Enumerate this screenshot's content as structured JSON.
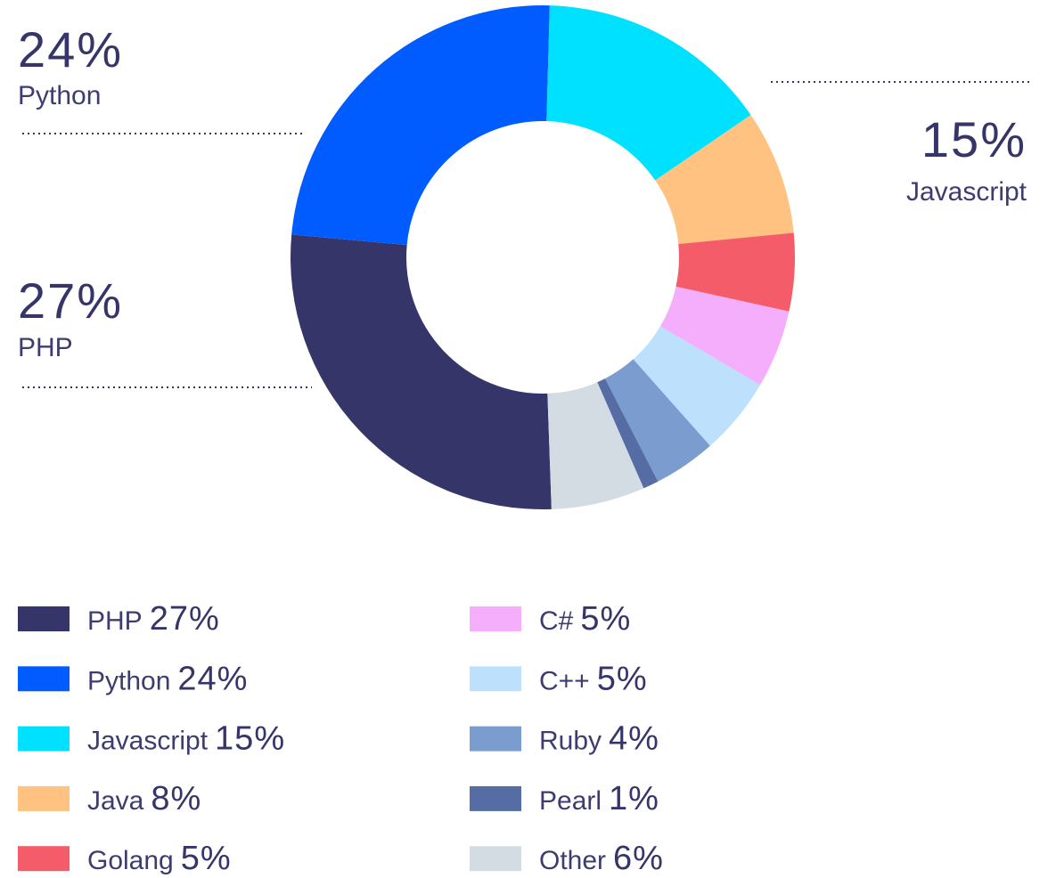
{
  "chart_data": {
    "type": "donut",
    "categories": [
      "PHP",
      "Python",
      "Javascript",
      "Java",
      "Golang",
      "C#",
      "C++",
      "Ruby",
      "Pearl",
      "Other"
    ],
    "values": [
      27,
      24,
      15,
      8,
      5,
      5,
      5,
      4,
      1,
      6
    ],
    "value_labels": [
      "27%",
      "24%",
      "15%",
      "8%",
      "5%",
      "5%",
      "5%",
      "4%",
      "1%",
      "6%"
    ],
    "colors": [
      "#35356a",
      "#005cff",
      "#00e1ff",
      "#ffc280",
      "#f45c6a",
      "#f5aefc",
      "#bde0fd",
      "#7b9ccf",
      "#566ca5",
      "#d3dbe3"
    ],
    "legend": true
  }
}
